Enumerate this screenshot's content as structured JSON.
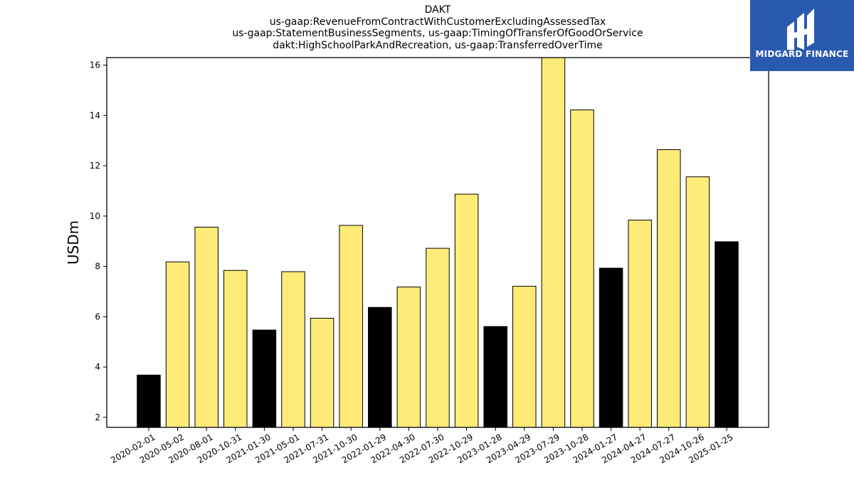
{
  "title_lines": [
    "DAKT",
    "us-gaap:RevenueFromContractWithCustomerExcludingAssessedTax",
    "us-gaap:StatementBusinessSegments, us-gaap:TimingOfTransferOfGoodOrService",
    "dakt:HighSchoolParkAndRecreation, us-gaap:TransferredOverTime"
  ],
  "logo": {
    "text": "MIDGARD FINANCE",
    "icon": "midgard-logo-icon"
  },
  "colors": {
    "highlight": "#000000",
    "normal": "#ffeb78",
    "logo_bg": "#2a5ab0"
  },
  "chart_data": {
    "type": "bar",
    "title": "DAKT",
    "xlabel": "",
    "ylabel": "USDm",
    "ylim": [
      1.6,
      16.3
    ],
    "yticks": [
      2,
      4,
      6,
      8,
      10,
      12,
      14,
      16
    ],
    "grid": false,
    "categories": [
      "2020-02-01",
      "2020-05-02",
      "2020-08-01",
      "2020-10-31",
      "2021-01-30",
      "2021-05-01",
      "2021-07-31",
      "2021-10-30",
      "2022-01-29",
      "2022-04-30",
      "2022-07-30",
      "2022-10-29",
      "2023-01-28",
      "2023-04-29",
      "2023-07-29",
      "2023-10-28",
      "2024-01-27",
      "2024-04-27",
      "2024-07-27",
      "2024-10-26",
      "2025-01-25"
    ],
    "values": [
      3.68,
      8.18,
      9.56,
      7.84,
      5.47,
      7.79,
      5.94,
      9.63,
      6.37,
      7.18,
      8.72,
      10.87,
      5.61,
      7.21,
      16.4,
      14.22,
      7.93,
      9.84,
      12.64,
      11.56,
      8.98
    ],
    "highlight": [
      true,
      false,
      false,
      false,
      true,
      false,
      false,
      false,
      true,
      false,
      false,
      false,
      true,
      false,
      false,
      false,
      true,
      false,
      false,
      false,
      true
    ]
  }
}
